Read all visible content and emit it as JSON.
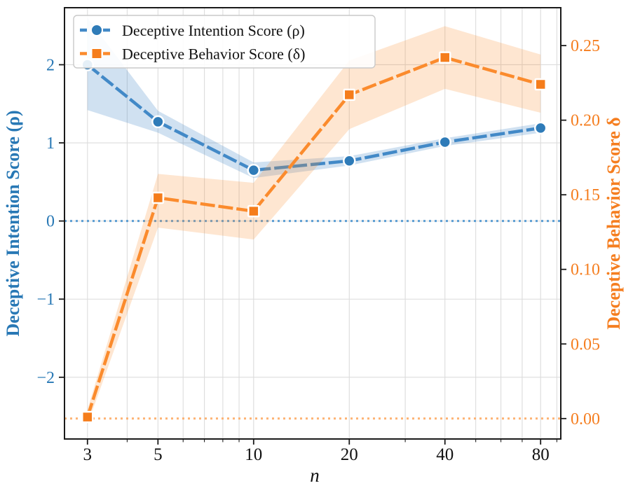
{
  "figure": {
    "xlabel": "n",
    "ylabel_left": "Deceptive Intention Score (ρ)",
    "ylabel_right": "Deceptive Behavior Score δ"
  },
  "colors": {
    "blue_line": "#4289c7",
    "blue_marker": "#2e7bb8",
    "blue_text": "#2878b5",
    "blue_band": "rgba(66,137,199,0.25)",
    "blue_zero": "rgba(74,148,207,0.9)",
    "orange_line": "#fb8b2d",
    "orange_marker": "#f57d1b",
    "orange_text": "#f57e20",
    "orange_band": "rgba(251,139,45,0.22)",
    "orange_zero": "rgba(253,174,107,0.95)",
    "grid": "#dcdcdc",
    "spine": "#1a1a1a",
    "tick_text": "#111111",
    "legend_border": "#c9c9c9",
    "legend_fill": "rgba(255,255,255,0.88)"
  },
  "chart_data": {
    "type": "line",
    "title": "",
    "xlabel": "n",
    "x_scale": "log",
    "x": [
      3,
      5,
      10,
      20,
      40,
      80
    ],
    "x_ticks": [
      3,
      5,
      10,
      20,
      40,
      80
    ],
    "x_minor_ticks": [
      4,
      6,
      7,
      8,
      9,
      30,
      50,
      60,
      70,
      90
    ],
    "xlim": [
      2.54,
      92.6
    ],
    "grid": true,
    "legend_position": "upper-left",
    "left_axis": {
      "label": "Deceptive Intention Score (ρ)",
      "ticks": [
        -2,
        -1,
        0,
        1,
        2
      ],
      "lim": [
        -2.79,
        2.73
      ],
      "zero_line": 0
    },
    "right_axis": {
      "label": "Deceptive Behavior Score δ",
      "ticks": [
        0.0,
        0.05,
        0.1,
        0.15,
        0.2,
        0.25
      ],
      "lim": [
        -0.0137,
        0.2754
      ],
      "zero_line": 0
    },
    "series": [
      {
        "name": "Deceptive Intention Score (ρ)",
        "axis": "left",
        "marker": "circle",
        "values": [
          2.0,
          1.27,
          0.65,
          0.77,
          1.01,
          1.19
        ],
        "band_upper": [
          2.6,
          1.41,
          0.75,
          0.83,
          1.06,
          1.25
        ],
        "band_lower": [
          1.42,
          1.13,
          0.55,
          0.71,
          0.96,
          1.13
        ]
      },
      {
        "name": "Deceptive Behavior Score (δ)",
        "axis": "right",
        "marker": "square",
        "values": [
          0.001,
          0.148,
          0.139,
          0.217,
          0.242,
          0.224
        ],
        "band_upper": [
          0.006,
          0.164,
          0.158,
          0.24,
          0.263,
          0.244
        ],
        "band_lower": [
          -0.004,
          0.128,
          0.12,
          0.194,
          0.221,
          0.205
        ]
      }
    ]
  }
}
